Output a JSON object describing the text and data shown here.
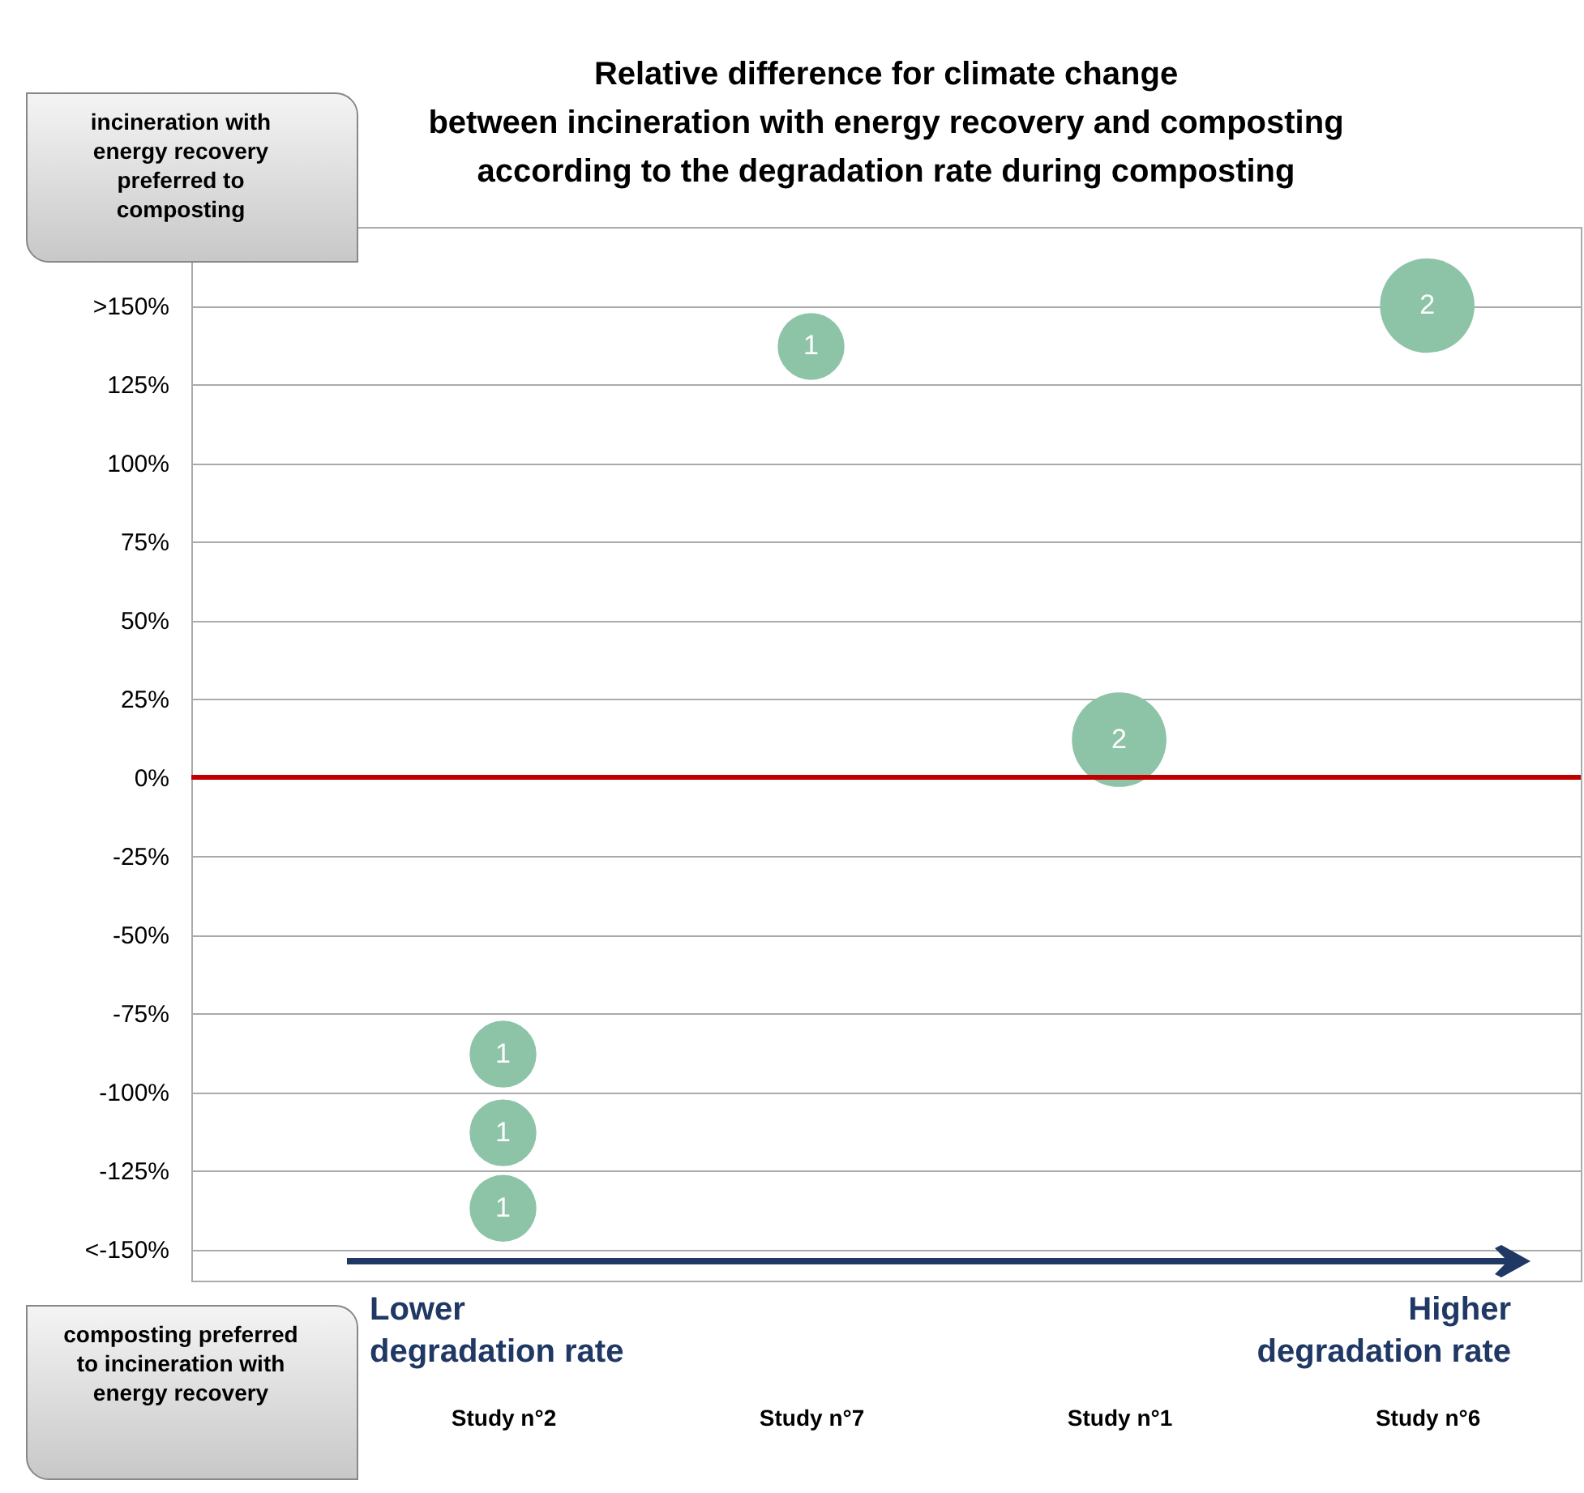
{
  "chart_data": {
    "type": "bubble",
    "title": "Relative difference  for climate change\nbetween incineration with energy recovery  and composting\naccording to the degradation rate during composting",
    "categories": [
      "Study n°2",
      "Study n°7",
      "Study n°1",
      "Study n°6"
    ],
    "series": [
      {
        "color": "#8dc4a8",
        "x": [
          "Study n°2",
          "Study n°2",
          "Study n°2",
          "Study n°7",
          "Study n°1",
          "Study n°6"
        ],
        "values": [
          -88,
          -113,
          -137,
          137,
          12,
          150
        ],
        "sizes": [
          1,
          1,
          1,
          1,
          2,
          2
        ],
        "value_labels": [
          "1",
          "1",
          "1",
          "1",
          "2",
          "2"
        ]
      }
    ],
    "ylim": [
      -160,
      175
    ],
    "yticks": [
      {
        "value": -150,
        "label": "<-150%"
      },
      {
        "value": -125,
        "label": "-125%"
      },
      {
        "value": -100,
        "label": "-100%"
      },
      {
        "value": -75,
        "label": "-75%"
      },
      {
        "value": -50,
        "label": "-50%"
      },
      {
        "value": -25,
        "label": "-25%"
      },
      {
        "value": 0,
        "label": "0%"
      },
      {
        "value": 25,
        "label": "25%"
      },
      {
        "value": 50,
        "label": "50%"
      },
      {
        "value": 75,
        "label": "75%"
      },
      {
        "value": 100,
        "label": "100%"
      },
      {
        "value": 125,
        "label": "125%"
      },
      {
        "value": 150,
        "label": ">150%"
      }
    ],
    "grid": "y",
    "ref_lines": [
      {
        "axis": "y",
        "value": 0,
        "color": "#c00000"
      }
    ],
    "annotations": [
      "Lower\ndegradation rate",
      "Higher\ndegradation rate",
      "incineration with energy recovery preferred to composting",
      "composting preferred to incineration with energy recovery"
    ]
  }
}
